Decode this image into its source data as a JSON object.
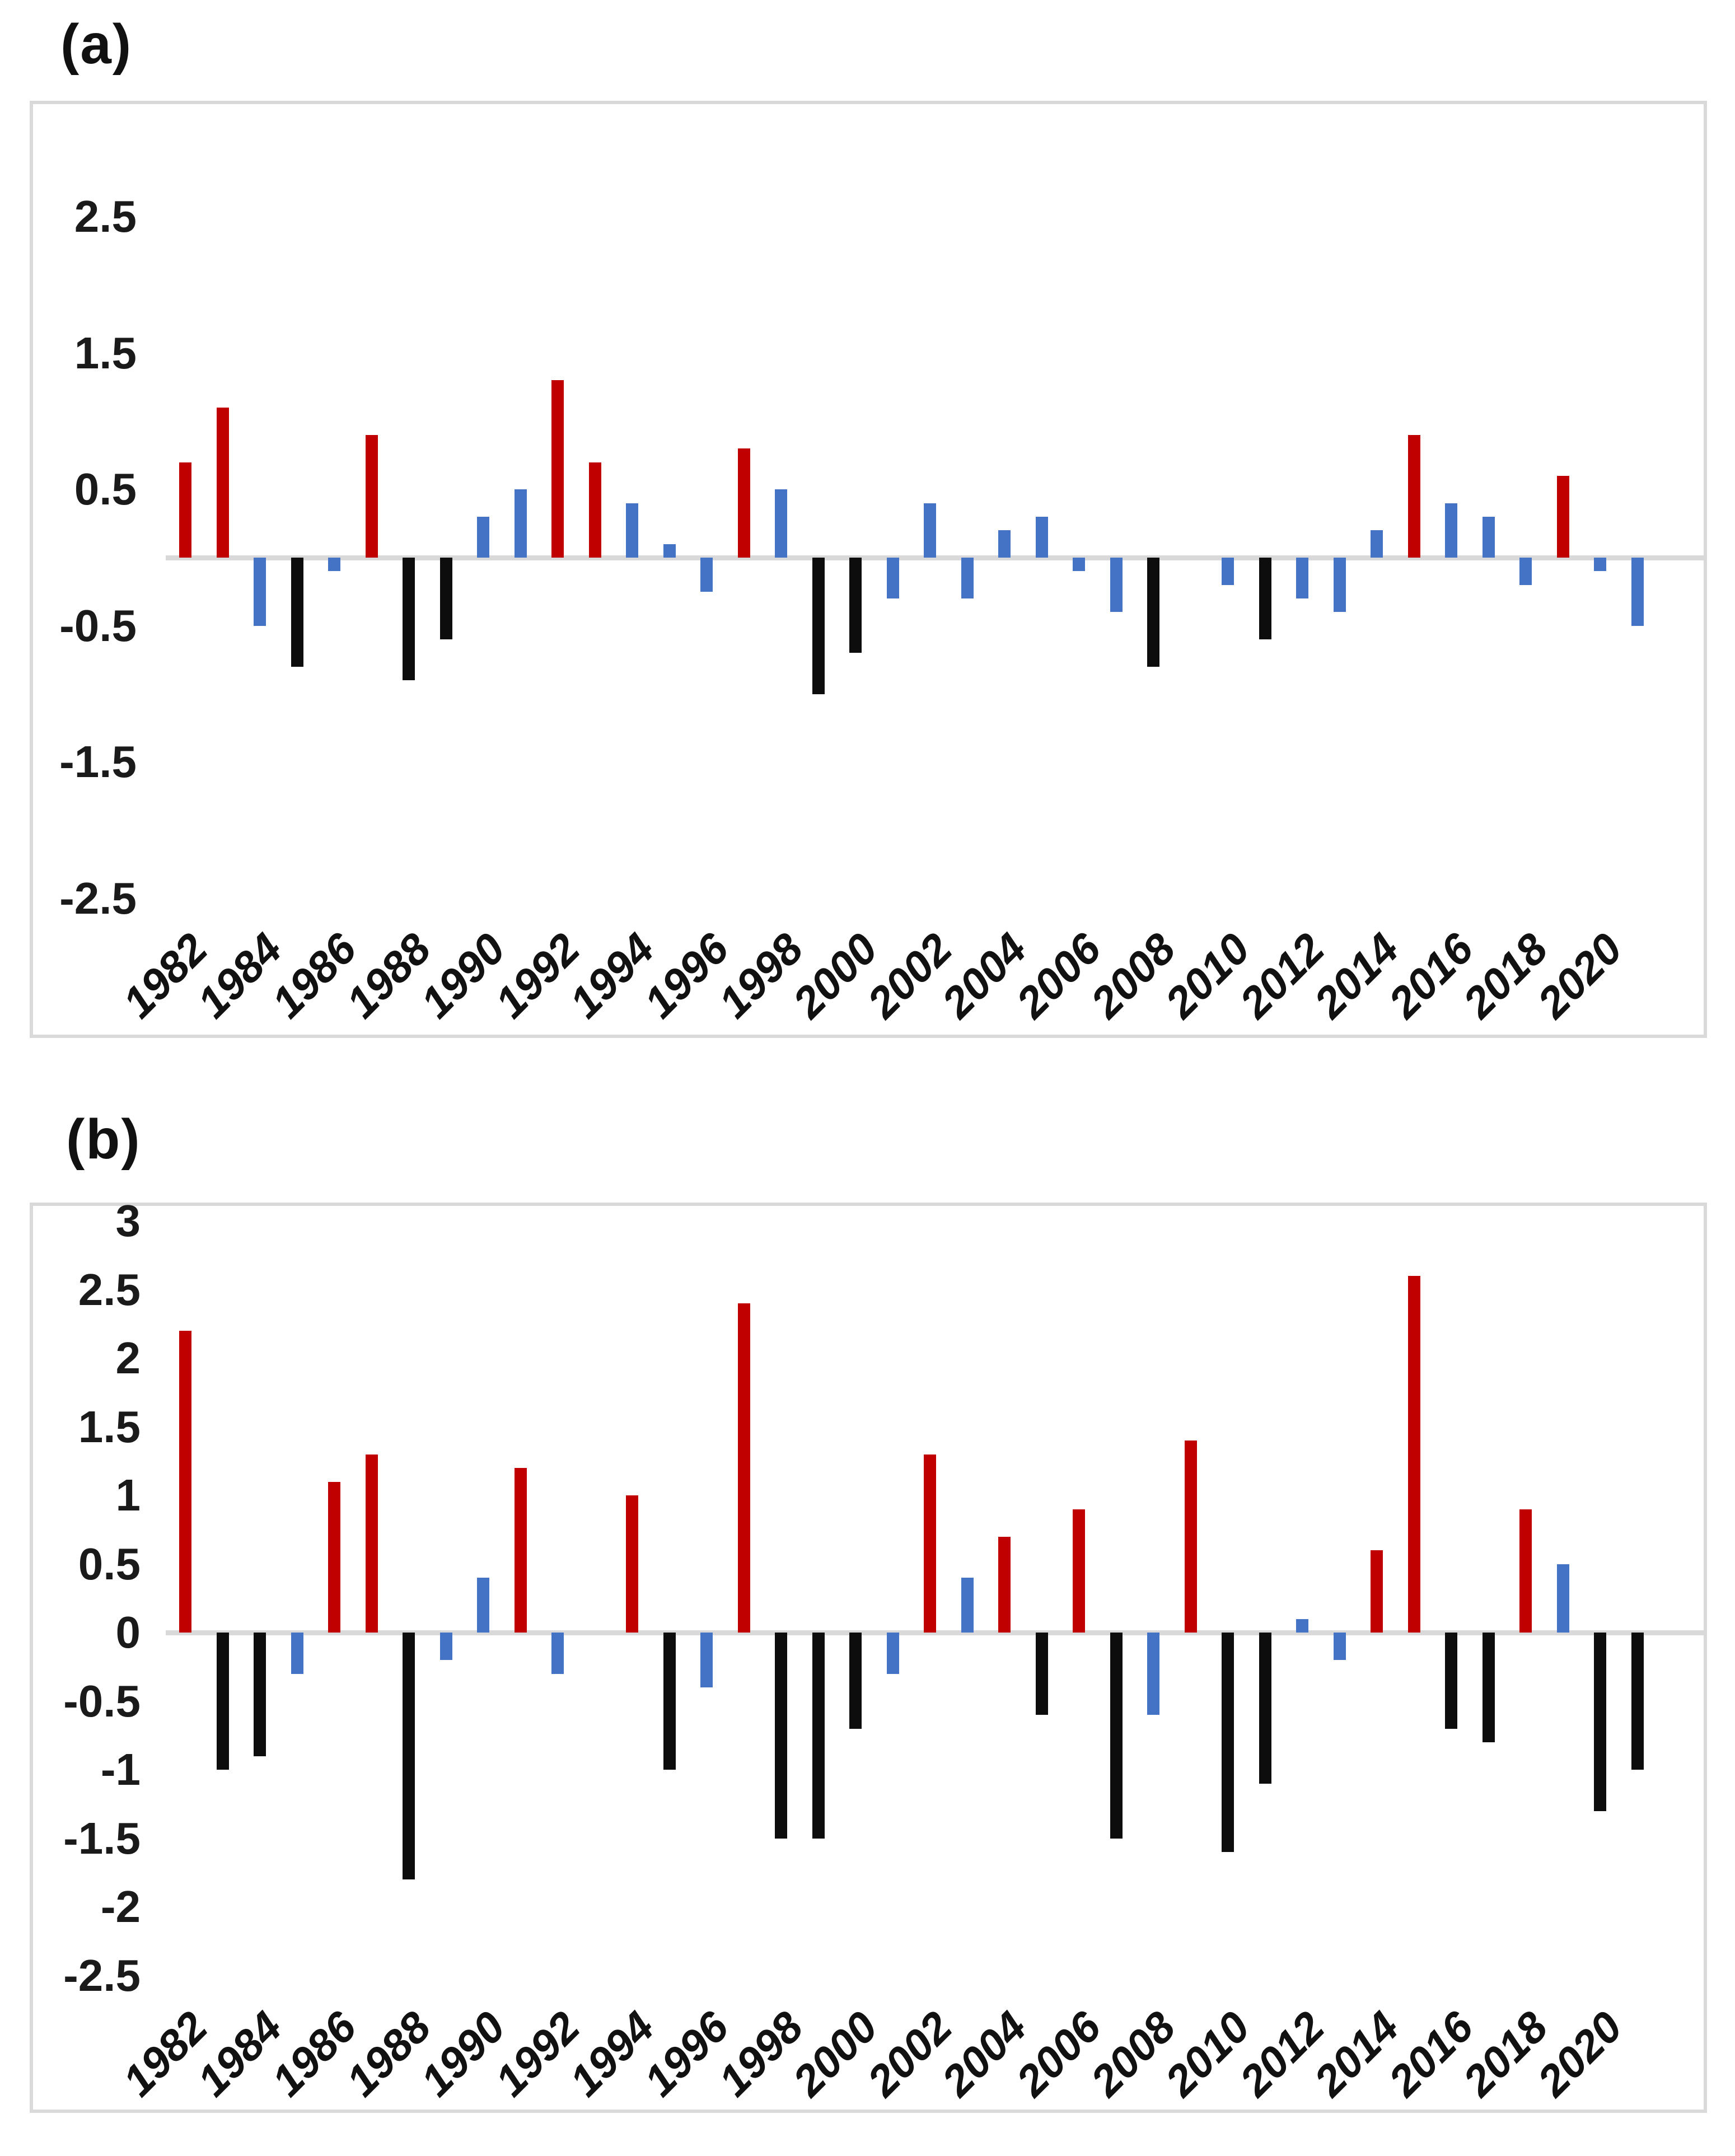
{
  "colors": {
    "bar": {
      "red": "#c00000",
      "blue": "#4472c4",
      "black": "#0d0d0d"
    },
    "axis_line": "#d9d9d9",
    "frame_border": "#d9d9d9",
    "text": "#1a1a1a"
  },
  "chart_data": [
    {
      "type": "bar",
      "panel_label": "(a)",
      "title": "",
      "xlabel": "",
      "ylabel": "",
      "grid": false,
      "legend": null,
      "ylim": [
        -3.5,
        3.3
      ],
      "x": [
        1982,
        1983,
        1984,
        1985,
        1986,
        1987,
        1988,
        1989,
        1990,
        1991,
        1992,
        1993,
        1994,
        1995,
        1996,
        1997,
        1998,
        1999,
        2000,
        2001,
        2002,
        2003,
        2004,
        2005,
        2006,
        2007,
        2008,
        2009,
        2010,
        2011,
        2012,
        2013,
        2014,
        2015,
        2016,
        2017,
        2018,
        2019,
        2020,
        2021
      ],
      "values": [
        0.7,
        1.1,
        -0.5,
        -0.8,
        -0.1,
        0.9,
        -0.9,
        -0.6,
        0.3,
        0.5,
        1.3,
        0.7,
        0.4,
        0.1,
        -0.25,
        0.8,
        0.5,
        -1.0,
        -0.7,
        -0.3,
        0.4,
        -0.3,
        0.2,
        0.3,
        -0.1,
        -0.4,
        -0.8,
        0,
        -0.2,
        -0.6,
        -0.3,
        -0.4,
        0.2,
        0.9,
        0.4,
        0.3,
        -0.2,
        0.6,
        -0.1,
        -0.5
      ],
      "bar_colors": [
        "red",
        "red",
        "blue",
        "black",
        "blue",
        "red",
        "black",
        "black",
        "blue",
        "blue",
        "red",
        "red",
        "blue",
        "blue",
        "blue",
        "red",
        "blue",
        "black",
        "black",
        "blue",
        "blue",
        "blue",
        "blue",
        "blue",
        "blue",
        "blue",
        "black",
        "none",
        "blue",
        "black",
        "blue",
        "blue",
        "blue",
        "red",
        "blue",
        "blue",
        "blue",
        "red",
        "blue",
        "blue"
      ],
      "yticks": [
        2.5,
        1.5,
        0.5,
        -0.5,
        -1.5,
        -2.5
      ],
      "ytick_labels": [
        "2.5",
        "1.5",
        "0.5",
        "-0.5",
        "-1.5",
        "-2.5"
      ],
      "xtick_labels": [
        "1982",
        "1984",
        "1986",
        "1988",
        "1990",
        "1992",
        "1994",
        "1996",
        "1998",
        "2000",
        "2002",
        "2004",
        "2006",
        "2008",
        "2010",
        "2012",
        "2014",
        "2016",
        "2018",
        "2020"
      ]
    },
    {
      "type": "bar",
      "panel_label": "(b)",
      "title": "",
      "xlabel": "",
      "ylabel": "",
      "grid": false,
      "legend": null,
      "ylim": [
        -3.5,
        3.1
      ],
      "x": [
        1982,
        1983,
        1984,
        1985,
        1986,
        1987,
        1988,
        1989,
        1990,
        1991,
        1992,
        1993,
        1994,
        1995,
        1996,
        1997,
        1998,
        1999,
        2000,
        2001,
        2002,
        2003,
        2004,
        2005,
        2006,
        2007,
        2008,
        2009,
        2010,
        2011,
        2012,
        2013,
        2014,
        2015,
        2016,
        2017,
        2018,
        2019,
        2020,
        2021
      ],
      "values": [
        2.2,
        -1.0,
        -0.9,
        -0.3,
        1.1,
        1.3,
        -1.8,
        -0.2,
        0.4,
        1.2,
        -0.3,
        0,
        1.0,
        -1.0,
        -0.4,
        2.4,
        -1.5,
        -1.5,
        -0.7,
        -0.3,
        1.3,
        0.4,
        0.7,
        -0.6,
        0.9,
        -1.5,
        -0.6,
        1.4,
        -1.6,
        -1.1,
        0.1,
        -0.2,
        0.6,
        2.6,
        -0.7,
        -0.8,
        0.9,
        0.5,
        -1.3,
        -1.0
      ],
      "bar_colors": [
        "red",
        "black",
        "black",
        "blue",
        "red",
        "red",
        "black",
        "blue",
        "blue",
        "red",
        "blue",
        "none",
        "red",
        "black",
        "blue",
        "red",
        "black",
        "black",
        "black",
        "blue",
        "red",
        "blue",
        "red",
        "black",
        "red",
        "black",
        "blue",
        "red",
        "black",
        "black",
        "blue",
        "blue",
        "red",
        "red",
        "black",
        "black",
        "red",
        "blue",
        "black",
        "black"
      ],
      "yticks": [
        3,
        2.5,
        2,
        1.5,
        1,
        0.5,
        0,
        -0.5,
        -1,
        -1.5,
        -2,
        -2.5
      ],
      "ytick_labels": [
        "3",
        "2.5",
        "2",
        "1.5",
        "1",
        "0.5",
        "0",
        "-0.5",
        "-1",
        "-1.5",
        "-2",
        "-2.5"
      ],
      "xtick_labels": [
        "1982",
        "1984",
        "1986",
        "1988",
        "1990",
        "1992",
        "1994",
        "1996",
        "1998",
        "2000",
        "2002",
        "2004",
        "2006",
        "2008",
        "2010",
        "2012",
        "2014",
        "2016",
        "2018",
        "2020"
      ]
    }
  ]
}
